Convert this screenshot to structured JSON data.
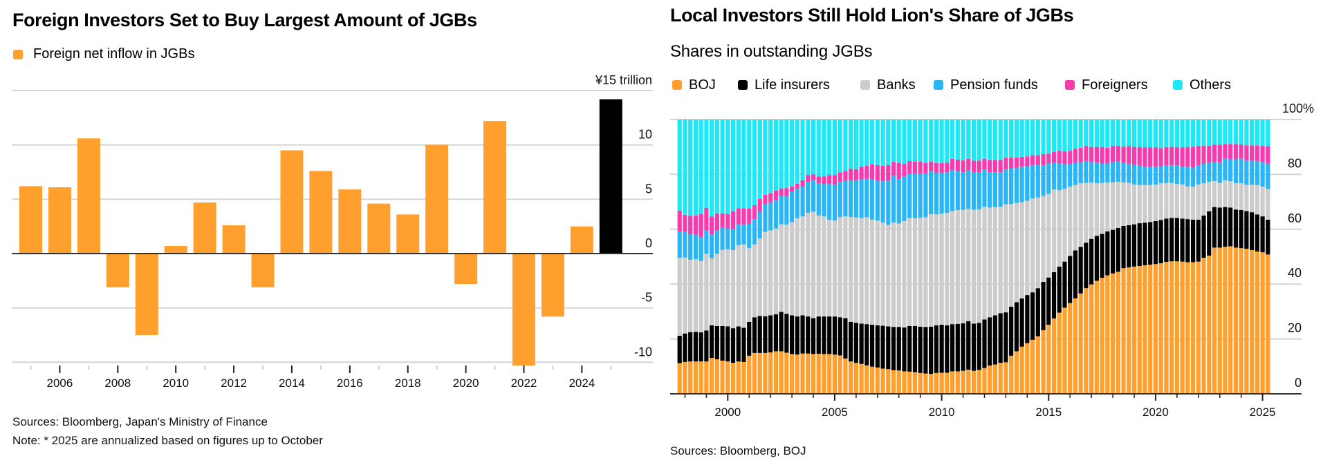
{
  "left": {
    "title": "Foreign Investors Set to Buy Largest Amount of JGBs",
    "legend": [
      {
        "label": "Foreign net inflow in JGBs",
        "color": "#FFA02E"
      }
    ],
    "unit_label": "¥15 trillion",
    "sources": "Sources: Bloomberg, Japan's Ministry of Finance",
    "note": "Note: * 2025 are annualized based on figures up to October"
  },
  "right": {
    "title": "Local Investors Still Hold Lion's Share of JGBs",
    "subtitle": "Shares in outstanding JGBs",
    "legend": [
      {
        "label": "BOJ",
        "color": "#FFA02E"
      },
      {
        "label": "Life insurers",
        "color": "#000000"
      },
      {
        "label": "Banks",
        "color": "#CCCCCC"
      },
      {
        "label": "Pension funds",
        "color": "#29B6F6"
      },
      {
        "label": "Foreigners",
        "color": "#F53BAD"
      },
      {
        "label": "Others",
        "color": "#1DE9F6"
      }
    ],
    "sources": "Sources: Bloomberg, BOJ"
  },
  "chart_data": [
    {
      "type": "bar",
      "title": "Foreign Investors Set to Buy Largest Amount of JGBs",
      "xlabel": "",
      "ylabel": "¥ trillion",
      "unit_label": "¥15 trillion",
      "categories": [
        "2005",
        "2006",
        "2007",
        "2008",
        "2009",
        "2010",
        "2011",
        "2012",
        "2013",
        "2014",
        "2015",
        "2016",
        "2017",
        "2018",
        "2019",
        "2020",
        "2021",
        "2022",
        "2023",
        "2024",
        "2025*"
      ],
      "series": [
        {
          "name": "Foreign net inflow in JGBs",
          "values": [
            6.2,
            6.1,
            10.6,
            -3.1,
            -7.5,
            0.7,
            4.7,
            2.6,
            -3.1,
            9.5,
            7.6,
            5.9,
            4.6,
            3.6,
            10.0,
            -2.8,
            12.2,
            -10.3,
            -5.8,
            2.5,
            14.2
          ],
          "colors": [
            "#FFA02E",
            "#FFA02E",
            "#FFA02E",
            "#FFA02E",
            "#FFA02E",
            "#FFA02E",
            "#FFA02E",
            "#FFA02E",
            "#FFA02E",
            "#FFA02E",
            "#FFA02E",
            "#FFA02E",
            "#FFA02E",
            "#FFA02E",
            "#FFA02E",
            "#FFA02E",
            "#FFA02E",
            "#FFA02E",
            "#FFA02E",
            "#FFA02E",
            "#000000"
          ]
        }
      ],
      "ylim": [
        -10.5,
        15
      ],
      "yticks": [
        {
          "v": 10,
          "label": "10"
        },
        {
          "v": 5,
          "label": "5"
        },
        {
          "v": 0,
          "label": "0"
        },
        {
          "v": -5,
          "label": "-5"
        },
        {
          "v": -10,
          "label": "-10"
        }
      ],
      "gridlines": [
        15,
        10,
        5,
        0,
        -5,
        -10
      ],
      "xtick_labels": [
        "2006",
        "2008",
        "2010",
        "2012",
        "2014",
        "2016",
        "2018",
        "2020",
        "2022",
        "2024"
      ],
      "grid": true,
      "legend_position": "top-left",
      "annotation": "2025 is annualized (highlighted in black)"
    },
    {
      "type": "bar",
      "stacked": true,
      "title": "Local Investors Still Hold Lion's Share of JGBs",
      "subtitle": "Shares in outstanding JGBs",
      "xlabel": "",
      "ylabel": "%",
      "frequency": "quarterly",
      "x_start": "1997Q4",
      "x_end": "2025Q2",
      "ylim": [
        0,
        100
      ],
      "yticks": [
        {
          "v": 100,
          "label": "100%"
        },
        {
          "v": 80,
          "label": "80"
        },
        {
          "v": 60,
          "label": "60"
        },
        {
          "v": 40,
          "label": "40"
        },
        {
          "v": 20,
          "label": "20"
        },
        {
          "v": 0,
          "label": "0"
        }
      ],
      "xtick_labels": [
        "2000",
        "2005",
        "2010",
        "2015",
        "2020",
        "2025"
      ],
      "grid": true,
      "legend_position": "top-left",
      "series_order": [
        "BOJ",
        "Life insurers",
        "Banks",
        "Pension funds",
        "Foreigners",
        "Others"
      ],
      "cumulative_note": "rows are cumulative upper boundaries (%) for BOJ, +Life insurers, +Banks, +Pension funds, +Foreigners; Others fills to 100",
      "cumulative": [
        [
          11.2,
          21.2,
          49.6,
          59.2,
          66.8
        ],
        [
          11.6,
          22.0,
          49.7,
          59.2,
          65.3
        ],
        [
          11.8,
          22.5,
          48.9,
          58.3,
          64.9
        ],
        [
          11.8,
          22.6,
          49.1,
          58.0,
          65.0
        ],
        [
          11.8,
          22.4,
          48.4,
          57.1,
          65.5
        ],
        [
          11.8,
          23.1,
          51.1,
          59.7,
          67.8
        ],
        [
          13.1,
          25.0,
          49.4,
          58.2,
          64.6
        ],
        [
          12.6,
          24.7,
          51.1,
          59.5,
          65.8
        ],
        [
          12.1,
          24.7,
          52.5,
          60.7,
          65.8
        ],
        [
          11.8,
          24.6,
          52.7,
          60.3,
          65.5
        ],
        [
          11.3,
          23.9,
          52.4,
          60.0,
          66.6
        ],
        [
          11.8,
          24.6,
          54.2,
          61.8,
          67.7
        ],
        [
          11.6,
          24.1,
          54.5,
          61.7,
          67.6
        ],
        [
          13.9,
          26.2,
          53.1,
          62.0,
          67.6
        ],
        [
          14.9,
          27.9,
          54.5,
          63.7,
          68.8
        ],
        [
          14.9,
          28.4,
          56.6,
          66.4,
          71.1
        ],
        [
          14.9,
          28.3,
          59.0,
          69.2,
          72.6
        ],
        [
          15.1,
          28.6,
          59.6,
          69.7,
          73.1
        ],
        [
          15.5,
          29.0,
          60.3,
          70.6,
          74.1
        ],
        [
          15.5,
          29.9,
          61.8,
          72.1,
          74.9
        ],
        [
          15.0,
          29.2,
          61.7,
          72.0,
          75.0
        ],
        [
          14.5,
          28.6,
          62.6,
          73.6,
          75.6
        ],
        [
          14.3,
          28.2,
          64.0,
          74.8,
          76.6
        ],
        [
          14.7,
          28.6,
          64.7,
          75.6,
          77.9
        ],
        [
          14.7,
          28.2,
          66.0,
          77.3,
          79.8
        ],
        [
          14.5,
          27.6,
          66.4,
          77.9,
          80.0
        ],
        [
          14.6,
          28.2,
          65.0,
          76.8,
          79.3
        ],
        [
          14.5,
          28.2,
          64.7,
          76.5,
          79.3
        ],
        [
          14.5,
          28.2,
          63.4,
          76.5,
          79.8
        ],
        [
          14.3,
          28.2,
          63.2,
          76.1,
          79.8
        ],
        [
          14.0,
          27.9,
          64.4,
          77.3,
          80.8
        ],
        [
          12.9,
          27.6,
          64.7,
          77.7,
          81.3
        ],
        [
          11.8,
          26.2,
          64.5,
          77.9,
          82.0
        ],
        [
          11.3,
          25.9,
          64.3,
          77.9,
          81.9
        ],
        [
          10.9,
          25.6,
          64.1,
          78.2,
          82.8
        ],
        [
          10.4,
          25.4,
          64.4,
          78.4,
          83.2
        ],
        [
          9.9,
          25.2,
          63.5,
          78.2,
          83.7
        ],
        [
          9.6,
          25.0,
          63.2,
          77.7,
          83.4
        ],
        [
          9.2,
          24.8,
          62.4,
          77.5,
          83.2
        ],
        [
          9.0,
          24.6,
          61.6,
          77.8,
          83.4
        ],
        [
          8.6,
          24.4,
          62.4,
          79.5,
          84.6
        ],
        [
          8.5,
          24.4,
          62.1,
          78.3,
          84.2
        ],
        [
          8.2,
          24.2,
          63.0,
          79.2,
          83.9
        ],
        [
          8.1,
          24.7,
          64.1,
          80.2,
          84.9
        ],
        [
          7.9,
          24.7,
          64.0,
          80.3,
          84.7
        ],
        [
          7.6,
          24.5,
          64.2,
          80.3,
          84.7
        ],
        [
          7.4,
          24.4,
          64.4,
          80.3,
          84.2
        ],
        [
          7.3,
          24.5,
          65.5,
          81.1,
          84.7
        ],
        [
          7.6,
          25.0,
          65.4,
          80.5,
          84.2
        ],
        [
          7.7,
          25.2,
          65.7,
          80.5,
          84.2
        ],
        [
          7.7,
          25.0,
          66.0,
          80.7,
          84.3
        ],
        [
          8.2,
          25.4,
          66.6,
          81.5,
          85.7
        ],
        [
          8.2,
          25.5,
          67.0,
          81.1,
          85.4
        ],
        [
          8.4,
          25.7,
          67.1,
          80.8,
          85.1
        ],
        [
          8.8,
          26.5,
          67.4,
          81.5,
          85.7
        ],
        [
          8.4,
          25.6,
          67.1,
          80.7,
          85.0
        ],
        [
          8.7,
          25.9,
          67.2,
          80.7,
          85.0
        ],
        [
          9.4,
          27.1,
          68.2,
          81.7,
          85.7
        ],
        [
          10.3,
          27.9,
          67.9,
          80.8,
          85.2
        ],
        [
          10.7,
          28.6,
          68.1,
          80.8,
          85.2
        ],
        [
          11.3,
          29.4,
          68.2,
          80.8,
          85.2
        ],
        [
          11.5,
          29.7,
          69.1,
          81.9,
          86.1
        ],
        [
          13.9,
          31.8,
          69.2,
          82.2,
          86.1
        ],
        [
          15.5,
          33.4,
          69.6,
          82.4,
          86.2
        ],
        [
          17.2,
          34.8,
          69.9,
          82.8,
          86.4
        ],
        [
          18.5,
          36.0,
          70.4,
          83.0,
          86.6
        ],
        [
          19.7,
          37.0,
          71.2,
          83.4,
          87.0
        ],
        [
          21.0,
          38.5,
          71.6,
          83.5,
          87.0
        ],
        [
          23.2,
          40.8,
          72.1,
          83.4,
          87.4
        ],
        [
          25.2,
          42.4,
          72.9,
          84.0,
          87.6
        ],
        [
          27.5,
          44.4,
          74.5,
          84.2,
          88.2
        ],
        [
          29.6,
          46.4,
          74.3,
          84.0,
          88.6
        ],
        [
          31.4,
          48.2,
          74.8,
          83.7,
          88.4
        ],
        [
          33.1,
          50.3,
          75.5,
          83.7,
          88.6
        ],
        [
          34.8,
          52.3,
          76.1,
          84.2,
          89.4
        ],
        [
          36.6,
          53.6,
          76.8,
          84.5,
          89.7
        ],
        [
          38.5,
          55.1,
          76.9,
          84.9,
          90.3
        ],
        [
          39.9,
          56.5,
          77.0,
          84.5,
          90.0
        ],
        [
          41.2,
          57.6,
          76.8,
          84.4,
          90.0
        ],
        [
          42.3,
          58.3,
          76.9,
          84.0,
          90.0
        ],
        [
          43.2,
          59.2,
          77.0,
          84.0,
          89.7
        ],
        [
          43.9,
          59.8,
          77.1,
          84.5,
          90.3
        ],
        [
          44.5,
          60.5,
          77.3,
          84.7,
          90.3
        ],
        [
          45.8,
          61.2,
          77.1,
          84.2,
          90.1
        ],
        [
          46.1,
          61.5,
          76.9,
          83.9,
          90.3
        ],
        [
          46.4,
          61.8,
          76.3,
          83.5,
          90.0
        ],
        [
          46.6,
          62.2,
          76.1,
          83.2,
          90.0
        ],
        [
          46.9,
          62.4,
          76.1,
          82.8,
          89.9
        ],
        [
          47.1,
          62.6,
          76.1,
          82.7,
          89.9
        ],
        [
          47.3,
          63.0,
          76.3,
          82.7,
          89.9
        ],
        [
          47.6,
          63.4,
          76.8,
          83.0,
          89.6
        ],
        [
          48.1,
          63.9,
          76.9,
          83.2,
          90.0
        ],
        [
          48.3,
          64.1,
          76.9,
          83.4,
          90.0
        ],
        [
          48.3,
          64.1,
          76.5,
          83.2,
          90.0
        ],
        [
          48.2,
          63.9,
          76.3,
          82.9,
          89.9
        ],
        [
          48.0,
          63.7,
          75.6,
          82.7,
          90.0
        ],
        [
          48.0,
          63.5,
          75.5,
          82.5,
          90.1
        ],
        [
          48.2,
          63.5,
          76.3,
          83.2,
          90.3
        ],
        [
          49.6,
          65.0,
          76.8,
          84.0,
          90.5
        ],
        [
          50.4,
          66.5,
          77.3,
          84.2,
          90.5
        ],
        [
          53.3,
          68.1,
          77.6,
          84.5,
          90.9
        ],
        [
          53.3,
          67.9,
          76.9,
          84.4,
          90.8
        ],
        [
          53.6,
          68.1,
          77.8,
          85.7,
          91.1
        ],
        [
          53.8,
          67.9,
          77.5,
          85.5,
          91.1
        ],
        [
          53.3,
          67.2,
          76.8,
          85.5,
          91.1
        ],
        [
          53.1,
          67.0,
          76.8,
          85.9,
          90.9
        ],
        [
          52.9,
          66.6,
          76.2,
          85.0,
          90.6
        ],
        [
          52.4,
          66.2,
          76.2,
          85.0,
          90.6
        ],
        [
          51.9,
          65.4,
          76.1,
          84.9,
          90.6
        ],
        [
          51.6,
          64.7,
          75.5,
          84.5,
          90.5
        ],
        [
          50.8,
          63.5,
          74.6,
          83.9,
          90.3
        ]
      ]
    }
  ]
}
